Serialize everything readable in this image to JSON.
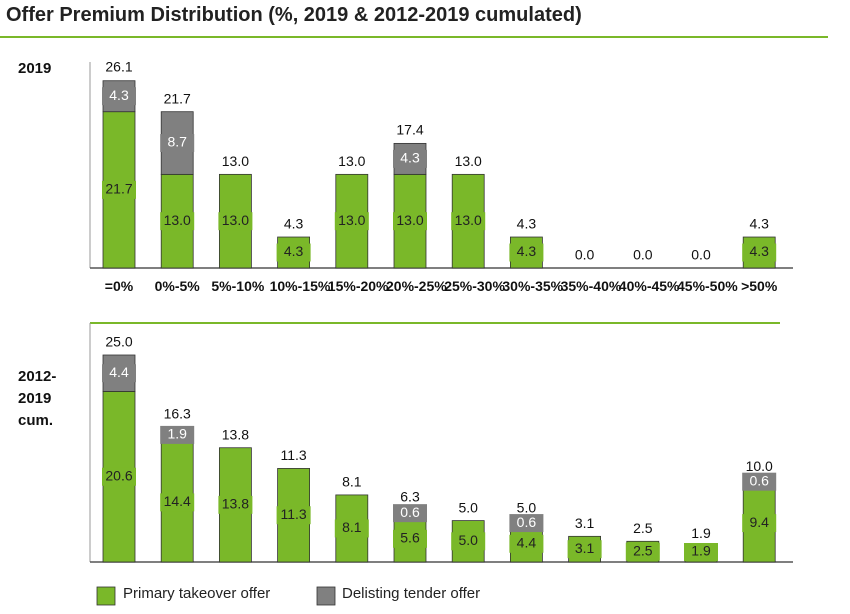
{
  "chart_data": {
    "type": "bar",
    "stacked": true,
    "title": "Offer Premium Distribution (%, 2019 & 2012-2019 cumulated)",
    "categories": [
      "=0%",
      "0%-5%",
      "5%-10%",
      "10%-15%",
      "15%-20%",
      "20%-25%",
      "25%-30%",
      "30%-35%",
      "35%-40%",
      "40%-45%",
      "45%-50%",
      ">50%"
    ],
    "series": [
      {
        "name": "Primary takeover offer",
        "color": "#7ab829"
      },
      {
        "name": "Delisting tender offer",
        "color": "#808080"
      }
    ],
    "panels": [
      {
        "label": "2019",
        "values": [
          [
            21.7,
            13.0,
            13.0,
            4.3,
            13.0,
            13.0,
            13.0,
            4.3,
            0,
            0,
            0,
            4.3
          ],
          [
            4.3,
            8.7,
            0,
            0,
            0,
            4.3,
            0,
            0,
            0,
            0,
            0,
            0
          ]
        ],
        "value_labels": [
          [
            "21.7",
            "13.0",
            "13.0",
            "4.3",
            "13.0",
            "13.0",
            "13.0",
            "4.3",
            null,
            null,
            null,
            "4.3"
          ],
          [
            "4.3",
            "8.7",
            null,
            null,
            null,
            "4.3",
            null,
            null,
            null,
            null,
            null,
            null
          ]
        ],
        "totals": [
          26.1,
          21.7,
          13.0,
          4.3,
          13.0,
          17.4,
          13.0,
          4.3,
          0,
          0,
          0,
          4.3
        ],
        "total_labels": [
          "26.1",
          "21.7",
          "13.0",
          "4.3",
          "13.0",
          "17.4",
          "13.0",
          "4.3",
          "0.0",
          "0.0",
          "0.0",
          "4.3"
        ]
      },
      {
        "label": "2012-2019 cum.",
        "values": [
          [
            20.6,
            14.4,
            13.8,
            11.3,
            8.1,
            5.6,
            5.0,
            4.4,
            3.1,
            2.5,
            1.9,
            9.4
          ],
          [
            4.4,
            1.9,
            0,
            0,
            0,
            0.6,
            0,
            0.6,
            0,
            0,
            0,
            0.6
          ]
        ],
        "value_labels": [
          [
            "20.6",
            "14.4",
            "13.8",
            "11.3",
            "8.1",
            "5.6",
            "5.0",
            "4.4",
            "3.1",
            "2.5",
            "1.9",
            "9.4"
          ],
          [
            "4.4",
            "1.9",
            null,
            null,
            null,
            "0.6",
            null,
            "0.6",
            null,
            null,
            null,
            "0.6"
          ]
        ],
        "totals": [
          25.0,
          16.3,
          13.8,
          11.3,
          8.1,
          6.3,
          5.0,
          5.0,
          3.1,
          2.5,
          1.9,
          10.0
        ],
        "total_labels": [
          "25.0",
          "16.3",
          "13.8",
          "11.3",
          "8.1",
          "6.3",
          "5.0",
          "5.0",
          "3.1",
          "2.5",
          "1.9",
          "10.0"
        ]
      }
    ]
  }
}
